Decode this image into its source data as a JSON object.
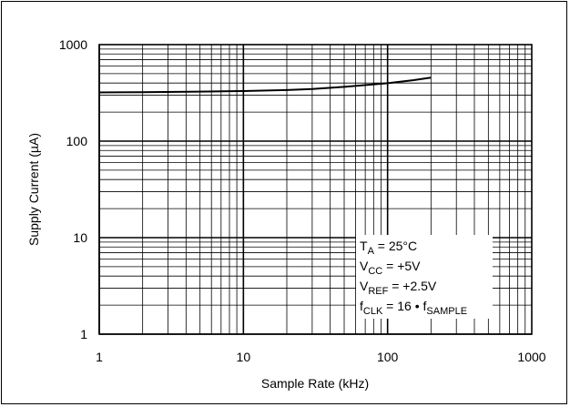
{
  "chart_data": {
    "type": "line",
    "title": "",
    "xlabel": "Sample Rate (kHz)",
    "ylabel": "Supply Current (µA)",
    "xscale": "log",
    "yscale": "log",
    "xlim": [
      1,
      1000
    ],
    "ylim": [
      1,
      1000
    ],
    "xticks": [
      "1",
      "10",
      "100",
      "1000"
    ],
    "yticks": [
      "1",
      "10",
      "100",
      "1000"
    ],
    "grid": true,
    "series": [
      {
        "color": "#000000",
        "x": [
          1,
          2,
          5,
          10,
          20,
          30,
          50,
          100,
          150,
          200
        ],
        "y": [
          320,
          322,
          326,
          330,
          338,
          347,
          365,
          398,
          428,
          455
        ]
      }
    ],
    "annotations": [
      {
        "parts": [
          [
            "T",
            ""
          ],
          [
            "A",
            "sub"
          ],
          [
            " = 25°C",
            ""
          ]
        ]
      },
      {
        "parts": [
          [
            "V",
            ""
          ],
          [
            "CC",
            "sub"
          ],
          [
            " = +5V",
            ""
          ]
        ]
      },
      {
        "parts": [
          [
            "V",
            ""
          ],
          [
            "REF",
            "sub"
          ],
          [
            " = +2.5V",
            ""
          ]
        ]
      },
      {
        "parts": [
          [
            "f",
            ""
          ],
          [
            "CLK",
            "sub"
          ],
          [
            " = 16 • f",
            ""
          ],
          [
            "SAMPLE",
            "sub"
          ]
        ]
      }
    ]
  }
}
